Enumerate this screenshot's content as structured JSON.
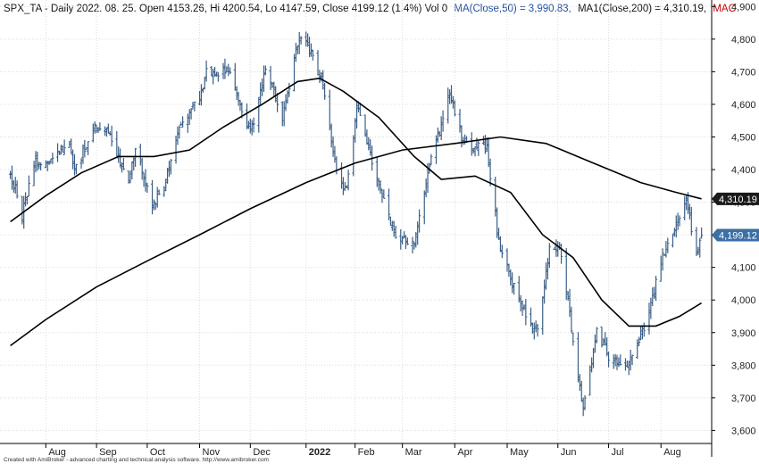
{
  "header": {
    "prefix": "SPX_TA - Daily 2022. 08. 25. Open 4153.26, Hi 4200.54, Lo 4147.59, Close 4199.12 (1.4%) Vol 0",
    "ma50": "MA(Close,50) = 3,990.83,",
    "ma200": "MA1(Close,200) = 4,310.19,",
    "mac": "MAC"
  },
  "footer": "Created with AmiBroker - advanced charting and technical analysis software. http://www.amibroker.com",
  "colors": {
    "background": "#ffffff",
    "bars": "#3b5f86",
    "ma_lines": "#000000",
    "grid": "#dcdcdc",
    "ma50_text": "#1f4f9f",
    "mac_text": "#cc0000",
    "badge_dark": "#1a1a1a",
    "badge_blue": "#3b6fa6"
  },
  "chart_data": {
    "type": "ohlc-bar",
    "title": "SPX_TA - Daily",
    "ylim": [
      3560,
      4920
    ],
    "y_ticks": [
      3600,
      3700,
      3800,
      3900,
      4000,
      4100,
      4200,
      4300,
      4400,
      4500,
      4600,
      4700,
      4800,
      4900
    ],
    "y_tick_labels": [
      "3,600",
      "3,700",
      "3,800",
      "3,900",
      "4,000",
      "4,100",
      "4,200",
      "4,300",
      "4,400",
      "4,500",
      "4,600",
      "4,700",
      "4,800",
      "4,900"
    ],
    "x_ticks": [
      {
        "label": "Aug",
        "date": "2021-08-02"
      },
      {
        "label": "Sep",
        "date": "2021-09-01"
      },
      {
        "label": "Oct",
        "date": "2021-10-01"
      },
      {
        "label": "Nov",
        "date": "2021-11-01"
      },
      {
        "label": "Dec",
        "date": "2021-12-01"
      },
      {
        "label": "2022",
        "date": "2022-01-03",
        "bold": true
      },
      {
        "label": "Feb",
        "date": "2022-02-01"
      },
      {
        "label": "Mar",
        "date": "2022-03-01"
      },
      {
        "label": "Apr",
        "date": "2022-04-01"
      },
      {
        "label": "May",
        "date": "2022-05-02"
      },
      {
        "label": "Jun",
        "date": "2022-06-01"
      },
      {
        "label": "Jul",
        "date": "2022-07-01"
      },
      {
        "label": "Aug",
        "date": "2022-08-01"
      }
    ],
    "price": [
      {
        "date": "2021-07-12",
        "close": 4380
      },
      {
        "date": "2021-07-16",
        "close": 4330
      },
      {
        "date": "2021-07-19",
        "close": 4260
      },
      {
        "date": "2021-07-26",
        "close": 4420
      },
      {
        "date": "2021-08-02",
        "close": 4420
      },
      {
        "date": "2021-08-16",
        "close": 4480
      },
      {
        "date": "2021-08-19",
        "close": 4400
      },
      {
        "date": "2021-08-31",
        "close": 4530
      },
      {
        "date": "2021-09-07",
        "close": 4520
      },
      {
        "date": "2021-09-20",
        "close": 4360
      },
      {
        "date": "2021-09-24",
        "close": 4460
      },
      {
        "date": "2021-10-04",
        "close": 4290
      },
      {
        "date": "2021-10-12",
        "close": 4360
      },
      {
        "date": "2021-10-20",
        "close": 4540
      },
      {
        "date": "2021-11-01",
        "close": 4620
      },
      {
        "date": "2021-11-05",
        "close": 4700
      },
      {
        "date": "2021-11-18",
        "close": 4700
      },
      {
        "date": "2021-11-26",
        "close": 4590
      },
      {
        "date": "2021-12-01",
        "close": 4510
      },
      {
        "date": "2021-12-10",
        "close": 4710
      },
      {
        "date": "2021-12-20",
        "close": 4560
      },
      {
        "date": "2021-12-29",
        "close": 4790
      },
      {
        "date": "2022-01-03",
        "close": 4800
      },
      {
        "date": "2022-01-13",
        "close": 4660
      },
      {
        "date": "2022-01-21",
        "close": 4400
      },
      {
        "date": "2022-01-27",
        "close": 4330
      },
      {
        "date": "2022-02-02",
        "close": 4590
      },
      {
        "date": "2022-02-11",
        "close": 4420
      },
      {
        "date": "2022-02-24",
        "close": 4200
      },
      {
        "date": "2022-03-08",
        "close": 4170
      },
      {
        "date": "2022-03-17",
        "close": 4410
      },
      {
        "date": "2022-03-29",
        "close": 4630
      },
      {
        "date": "2022-04-06",
        "close": 4480
      },
      {
        "date": "2022-04-20",
        "close": 4460
      },
      {
        "date": "2022-04-27",
        "close": 4180
      },
      {
        "date": "2022-05-09",
        "close": 3990
      },
      {
        "date": "2022-05-20",
        "close": 3900
      },
      {
        "date": "2022-05-27",
        "close": 4160
      },
      {
        "date": "2022-06-02",
        "close": 4170
      },
      {
        "date": "2022-06-16",
        "close": 3670
      },
      {
        "date": "2022-06-24",
        "close": 3910
      },
      {
        "date": "2022-07-01",
        "close": 3830
      },
      {
        "date": "2022-07-13",
        "close": 3800
      },
      {
        "date": "2022-07-25",
        "close": 3960
      },
      {
        "date": "2022-08-01",
        "close": 4120
      },
      {
        "date": "2022-08-16",
        "close": 4300
      },
      {
        "date": "2022-08-22",
        "close": 4140
      },
      {
        "date": "2022-08-25",
        "close": 4199.12
      }
    ],
    "series": [
      {
        "name": "MA(Close,50)",
        "last": 3990.83,
        "points": [
          {
            "date": "2021-07-12",
            "value": 4240
          },
          {
            "date": "2021-08-02",
            "value": 4320
          },
          {
            "date": "2021-08-23",
            "value": 4390
          },
          {
            "date": "2021-09-14",
            "value": 4440
          },
          {
            "date": "2021-10-05",
            "value": 4440
          },
          {
            "date": "2021-10-26",
            "value": 4460
          },
          {
            "date": "2021-11-15",
            "value": 4530
          },
          {
            "date": "2021-12-08",
            "value": 4600
          },
          {
            "date": "2021-12-29",
            "value": 4670
          },
          {
            "date": "2022-01-11",
            "value": 4680
          },
          {
            "date": "2022-01-25",
            "value": 4640
          },
          {
            "date": "2022-02-15",
            "value": 4560
          },
          {
            "date": "2022-03-08",
            "value": 4440
          },
          {
            "date": "2022-03-24",
            "value": 4370
          },
          {
            "date": "2022-04-13",
            "value": 4380
          },
          {
            "date": "2022-05-04",
            "value": 4330
          },
          {
            "date": "2022-05-23",
            "value": 4200
          },
          {
            "date": "2022-06-10",
            "value": 4130
          },
          {
            "date": "2022-06-27",
            "value": 4000
          },
          {
            "date": "2022-07-13",
            "value": 3920
          },
          {
            "date": "2022-07-29",
            "value": 3920
          },
          {
            "date": "2022-08-12",
            "value": 3950
          },
          {
            "date": "2022-08-25",
            "value": 3990.83
          }
        ]
      },
      {
        "name": "MA1(Close,200)",
        "last": 4310.19,
        "points": [
          {
            "date": "2021-07-12",
            "value": 3860
          },
          {
            "date": "2021-08-02",
            "value": 3940
          },
          {
            "date": "2021-09-01",
            "value": 4040
          },
          {
            "date": "2021-10-01",
            "value": 4120
          },
          {
            "date": "2021-11-01",
            "value": 4200
          },
          {
            "date": "2021-12-01",
            "value": 4280
          },
          {
            "date": "2022-01-03",
            "value": 4360
          },
          {
            "date": "2022-02-01",
            "value": 4420
          },
          {
            "date": "2022-03-01",
            "value": 4460
          },
          {
            "date": "2022-04-01",
            "value": 4480
          },
          {
            "date": "2022-04-28",
            "value": 4500
          },
          {
            "date": "2022-05-25",
            "value": 4480
          },
          {
            "date": "2022-06-22",
            "value": 4420
          },
          {
            "date": "2022-07-20",
            "value": 4360
          },
          {
            "date": "2022-08-10",
            "value": 4330
          },
          {
            "date": "2022-08-25",
            "value": 4310.19
          }
        ]
      }
    ],
    "price_badges": [
      {
        "value": 4310.19,
        "label": "4,310.19",
        "style": "dark"
      },
      {
        "value": 4199.12,
        "label": "4,199.12",
        "style": "blue"
      }
    ]
  }
}
